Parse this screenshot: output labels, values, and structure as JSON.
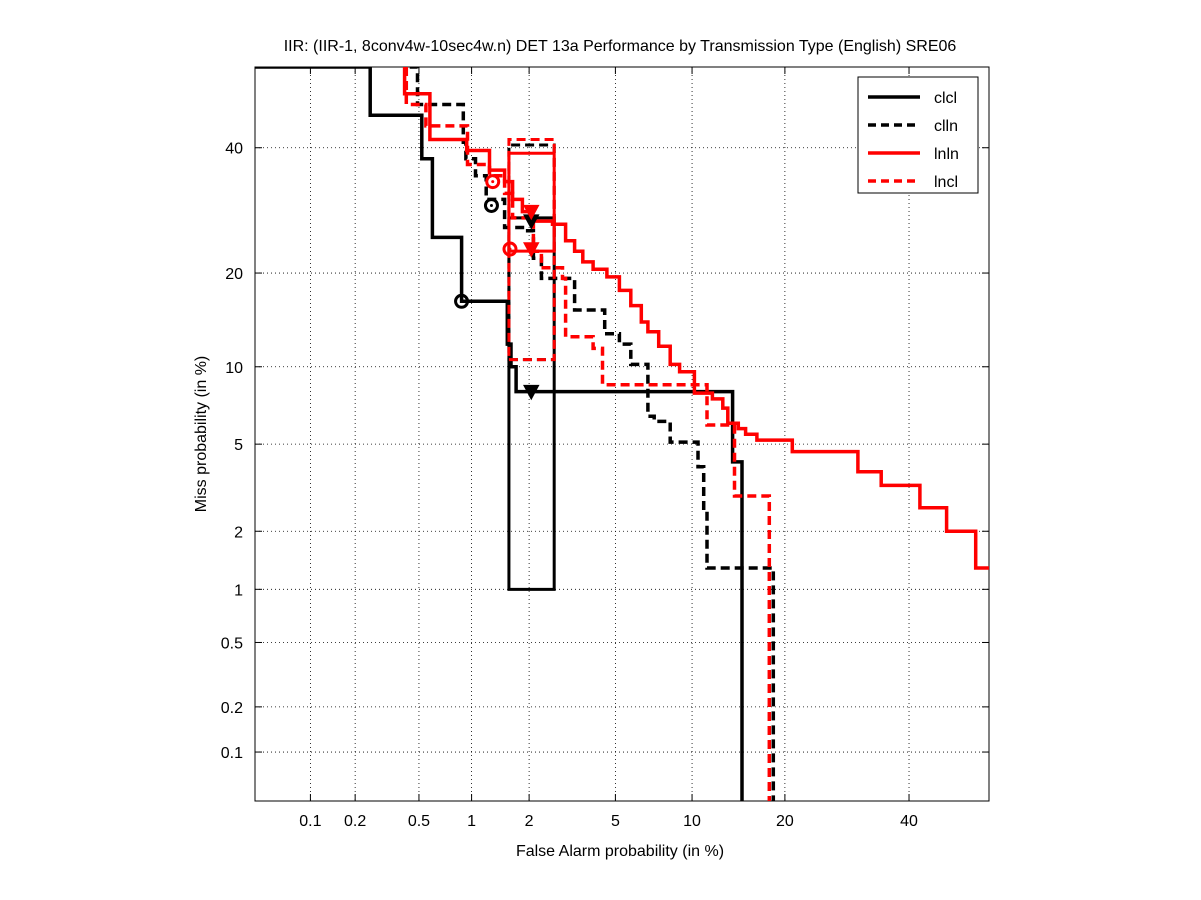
{
  "chart_data": {
    "type": "line",
    "title": "IIR: (IIR-1, 8conv4w-10sec4w.n) DET 13a Performance by Transmission Type (English) SRE06",
    "xlabel": "False Alarm probability (in %)",
    "ylabel": "Miss probability (in %)",
    "x_scale": "normal-deviate (probit)",
    "y_scale": "normal-deviate (probit)",
    "xlim": [
      0.04,
      55
    ],
    "ylim": [
      0.045,
      55
    ],
    "xticks": [
      0.1,
      0.2,
      0.5,
      1,
      2,
      5,
      10,
      20,
      40
    ],
    "xtick_labels": [
      "0.1",
      "0.2",
      "0.5",
      "1",
      "2",
      "5",
      "10",
      "20",
      "40"
    ],
    "yticks": [
      0.1,
      0.2,
      0.5,
      1,
      2,
      5,
      10,
      20,
      40
    ],
    "ytick_labels": [
      "0.1",
      "0.2",
      "0.5",
      "1",
      "2",
      "5",
      "10",
      "20",
      "40"
    ],
    "grid": true,
    "legend_position": "top-right",
    "series": [
      {
        "name": "clcl",
        "color": "#000000",
        "dash": "solid",
        "points": [
          [
            0.04,
            55
          ],
          [
            0.25,
            55
          ],
          [
            0.25,
            46
          ],
          [
            0.52,
            46
          ],
          [
            0.52,
            38
          ],
          [
            0.6,
            38
          ],
          [
            0.6,
            25
          ],
          [
            0.88,
            25
          ],
          [
            0.88,
            16.5
          ],
          [
            1.55,
            16.5
          ],
          [
            1.55,
            12
          ],
          [
            1.62,
            12
          ],
          [
            1.62,
            10
          ],
          [
            1.72,
            10
          ],
          [
            1.72,
            8.1
          ],
          [
            13.8,
            8.1
          ],
          [
            13.8,
            4.2
          ],
          [
            14.8,
            4.2
          ],
          [
            14.8,
            0.045
          ]
        ],
        "circle_marker": [
          0.88,
          16.5
        ],
        "triangle_marker": [
          2.05,
          8.1
        ],
        "confidence_box": {
          "x": [
            1.58,
            2.65
          ],
          "y": [
            1.0,
            28
          ]
        }
      },
      {
        "name": "clln",
        "color": "#000000",
        "dash": "dashed",
        "points": [
          [
            0.44,
            55
          ],
          [
            0.49,
            55
          ],
          [
            0.49,
            48
          ],
          [
            0.9,
            48
          ],
          [
            0.9,
            41
          ],
          [
            0.93,
            41
          ],
          [
            0.93,
            38
          ],
          [
            1.05,
            38
          ],
          [
            1.05,
            35
          ],
          [
            1.2,
            35
          ],
          [
            1.2,
            31
          ],
          [
            1.5,
            31
          ],
          [
            1.5,
            26.5
          ],
          [
            1.9,
            26.5
          ],
          [
            1.9,
            26
          ],
          [
            2.1,
            26
          ],
          [
            2.1,
            22
          ],
          [
            2.3,
            22
          ],
          [
            2.3,
            19.3
          ],
          [
            3.3,
            19.3
          ],
          [
            3.3,
            15.5
          ],
          [
            4.5,
            15.5
          ],
          [
            4.5,
            13
          ],
          [
            5.2,
            13
          ],
          [
            5.2,
            12
          ],
          [
            5.8,
            12
          ],
          [
            5.8,
            10.2
          ],
          [
            6.8,
            10.2
          ],
          [
            6.8,
            6.5
          ],
          [
            7.2,
            6.5
          ],
          [
            7.2,
            6.2
          ],
          [
            8.3,
            6.2
          ],
          [
            8.3,
            5.1
          ],
          [
            10.5,
            5.1
          ],
          [
            10.5,
            4.0
          ],
          [
            11.0,
            4.0
          ],
          [
            11.0,
            2.5
          ],
          [
            11.3,
            2.5
          ],
          [
            11.3,
            1.3
          ],
          [
            18.5,
            1.3
          ],
          [
            18.5,
            0.045
          ]
        ],
        "circle_marker": [
          1.28,
          30
        ],
        "triangle_marker": [
          2.05,
          27.5
        ],
        "confidence_box": {
          "x": [
            1.58,
            2.65
          ],
          "y": [
            10.6,
            40.5
          ]
        }
      },
      {
        "name": "lnln",
        "color": "#ff0000",
        "dash": "solid",
        "points": [
          [
            0.41,
            55
          ],
          [
            0.41,
            50
          ],
          [
            0.58,
            50
          ],
          [
            0.58,
            41.5
          ],
          [
            0.94,
            41.5
          ],
          [
            0.94,
            39.5
          ],
          [
            1.25,
            39.5
          ],
          [
            1.25,
            36
          ],
          [
            1.5,
            36
          ],
          [
            1.5,
            34
          ],
          [
            1.65,
            34
          ],
          [
            1.65,
            31
          ],
          [
            1.85,
            31
          ],
          [
            1.85,
            29
          ],
          [
            2.05,
            29
          ],
          [
            2.05,
            27.5
          ],
          [
            2.6,
            27.5
          ],
          [
            2.6,
            27
          ],
          [
            3.0,
            27
          ],
          [
            3.0,
            24.5
          ],
          [
            3.3,
            24.5
          ],
          [
            3.3,
            23
          ],
          [
            3.6,
            23
          ],
          [
            3.6,
            21.5
          ],
          [
            4.0,
            21.5
          ],
          [
            4.0,
            20.5
          ],
          [
            4.6,
            20.5
          ],
          [
            4.6,
            19.5
          ],
          [
            5.2,
            19.5
          ],
          [
            5.2,
            17.8
          ],
          [
            5.8,
            17.8
          ],
          [
            5.8,
            16
          ],
          [
            6.4,
            16
          ],
          [
            6.4,
            14.2
          ],
          [
            6.8,
            14.2
          ],
          [
            6.8,
            13.2
          ],
          [
            7.5,
            13.2
          ],
          [
            7.5,
            11.8
          ],
          [
            8.3,
            11.8
          ],
          [
            8.3,
            10.2
          ],
          [
            9.0,
            10.2
          ],
          [
            9.0,
            9.6
          ],
          [
            10.2,
            9.6
          ],
          [
            10.2,
            8.0
          ],
          [
            11.8,
            8.0
          ],
          [
            11.8,
            7.6
          ],
          [
            12.8,
            7.6
          ],
          [
            12.8,
            7.0
          ],
          [
            13.3,
            7.0
          ],
          [
            13.3,
            6.1
          ],
          [
            14.4,
            6.1
          ],
          [
            14.4,
            5.8
          ],
          [
            15.2,
            5.8
          ],
          [
            15.2,
            5.5
          ],
          [
            16.5,
            5.5
          ],
          [
            16.5,
            5.2
          ],
          [
            21.0,
            5.2
          ],
          [
            21.0,
            4.65
          ],
          [
            31.0,
            4.65
          ],
          [
            31.0,
            3.8
          ],
          [
            35.0,
            3.8
          ],
          [
            35.0,
            3.3
          ],
          [
            42.0,
            3.3
          ],
          [
            42.0,
            2.6
          ],
          [
            47.0,
            2.6
          ],
          [
            47.0,
            2.0
          ],
          [
            52.5,
            2.0
          ],
          [
            52.5,
            1.3
          ],
          [
            55,
            1.3
          ]
        ],
        "circle_marker": [
          1.6,
          23.3
        ],
        "triangle_marker": [
          2.05,
          29
        ],
        "confidence_box": {
          "x": [
            1.58,
            2.65
          ],
          "y": [
            23,
            39
          ]
        }
      },
      {
        "name": "lncl",
        "color": "#ff0000",
        "dash": "dashed",
        "points": [
          [
            0.42,
            55
          ],
          [
            0.42,
            48
          ],
          [
            0.55,
            48
          ],
          [
            0.55,
            44
          ],
          [
            0.95,
            44
          ],
          [
            0.95,
            37
          ],
          [
            1.25,
            37
          ],
          [
            1.25,
            35
          ],
          [
            1.5,
            35
          ],
          [
            1.5,
            32
          ],
          [
            1.65,
            32
          ],
          [
            1.65,
            28
          ],
          [
            2.1,
            28
          ],
          [
            2.1,
            23
          ],
          [
            2.3,
            23
          ],
          [
            2.3,
            20.7
          ],
          [
            2.9,
            20.7
          ],
          [
            2.9,
            19.3
          ],
          [
            3.0,
            19.3
          ],
          [
            3.0,
            12.7
          ],
          [
            4.0,
            12.7
          ],
          [
            4.0,
            11.6
          ],
          [
            4.4,
            11.6
          ],
          [
            4.4,
            8.6
          ],
          [
            11.3,
            8.6
          ],
          [
            11.3,
            6.0
          ],
          [
            14.0,
            6.0
          ],
          [
            14.0,
            2.95
          ],
          [
            18.0,
            2.95
          ],
          [
            18.0,
            0.045
          ]
        ],
        "circle_marker": [
          1.3,
          34
        ],
        "triangle_marker": [
          2.05,
          23.3
        ],
        "confidence_box": {
          "x": [
            1.58,
            2.65
          ],
          "y": [
            10.6,
            41.5
          ]
        }
      }
    ]
  }
}
